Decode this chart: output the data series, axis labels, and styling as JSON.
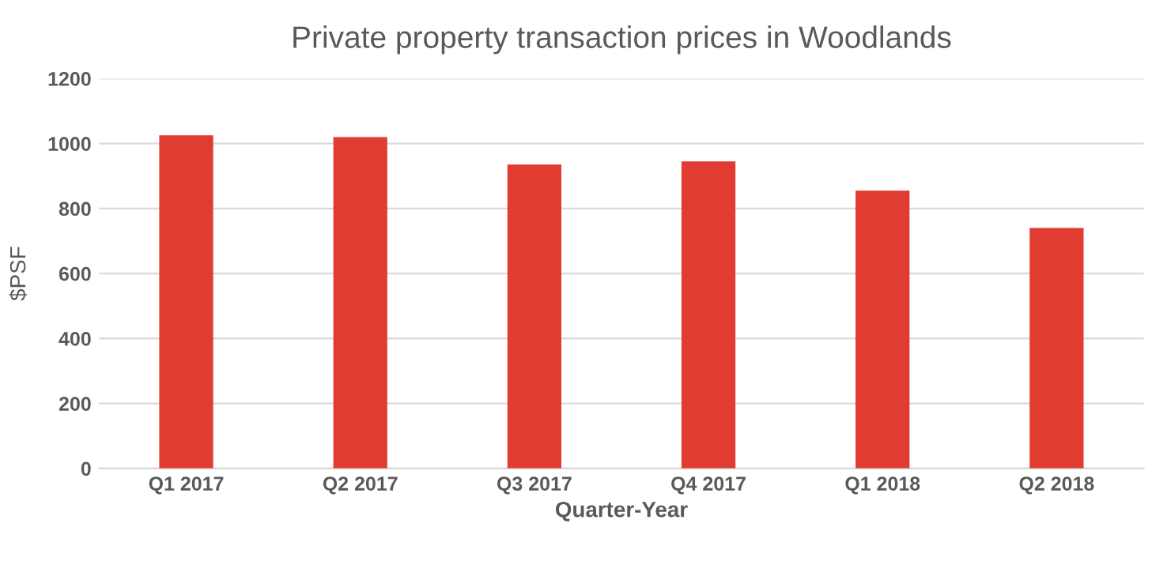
{
  "chart_data": {
    "type": "bar",
    "title": "Private property transaction prices in Woodlands",
    "xlabel": "Quarter-Year",
    "ylabel": "$PSF",
    "categories": [
      "Q1 2017",
      "Q2 2017",
      "Q3 2017",
      "Q4 2017",
      "Q1 2018",
      "Q2 2018"
    ],
    "values": [
      1025,
      1020,
      935,
      945,
      855,
      740
    ],
    "color": "#e03c31",
    "ylim": [
      0,
      1200
    ],
    "yticks": [
      0,
      200,
      400,
      600,
      800,
      1000,
      1200
    ],
    "grid": "y"
  }
}
